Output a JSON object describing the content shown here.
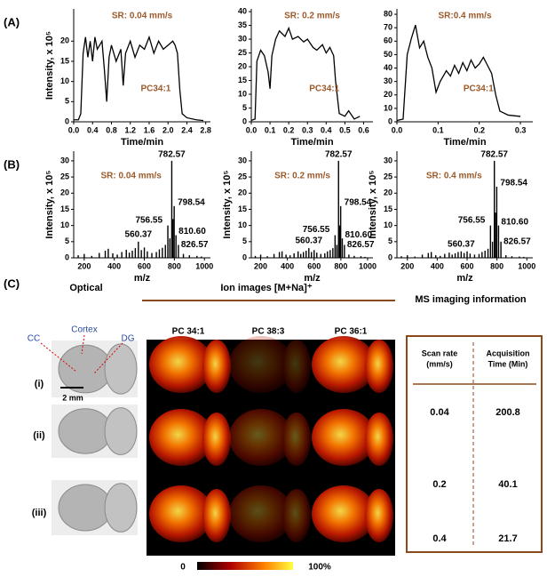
{
  "panel_labels": [
    "(A)",
    "(B)",
    "(C)"
  ],
  "chart_data": [
    {
      "type": "line",
      "annotations": [
        "SR: 0.04 mm/s",
        "PC34:1"
      ],
      "xlabel": "Time/min",
      "ylabel": "Intensity, x 10⁵",
      "color": "#000000",
      "x": [
        0,
        0.1,
        0.15,
        0.2,
        0.25,
        0.3,
        0.35,
        0.4,
        0.45,
        0.5,
        0.55,
        0.6,
        0.65,
        0.7,
        0.75,
        0.8,
        0.9,
        1.0,
        1.05,
        1.1,
        1.2,
        1.3,
        1.4,
        1.5,
        1.6,
        1.7,
        1.8,
        1.9,
        2.0,
        2.1,
        2.15,
        2.2,
        2.25,
        2.3,
        2.4,
        2.6,
        2.75
      ],
      "values": [
        0.5,
        0.5,
        2,
        17,
        21,
        16,
        20,
        15,
        21,
        18,
        19,
        20,
        13,
        5,
        16,
        19,
        15,
        18,
        9,
        17,
        20,
        16,
        19,
        18,
        21,
        17,
        20,
        18,
        19,
        20,
        19,
        17,
        8,
        2,
        1,
        0.5,
        0.3
      ],
      "xlim": [
        0,
        2.9
      ],
      "ylim": [
        0,
        28
      ],
      "xticks": [
        {
          "value": 0,
          "label": "0.0"
        },
        0.4,
        0.8,
        1.2,
        1.6,
        {
          "value": 2,
          "label": "2.0"
        },
        2.4,
        2.8
      ],
      "yticks": [
        0,
        5,
        10,
        15,
        20
      ]
    },
    {
      "type": "line",
      "annotations": [
        "SR: 0.2 mm/s",
        "PC34:1"
      ],
      "xlabel": "Time/min",
      "color": "#000000",
      "x": [
        0,
        0.02,
        0.03,
        0.05,
        0.07,
        0.09,
        0.1,
        0.11,
        0.13,
        0.15,
        0.18,
        0.2,
        0.22,
        0.25,
        0.28,
        0.3,
        0.33,
        0.35,
        0.38,
        0.4,
        0.42,
        0.44,
        0.45,
        0.47,
        0.5,
        0.52,
        0.55,
        0.58
      ],
      "values": [
        0.5,
        1,
        22,
        26,
        24,
        18,
        12,
        24,
        30,
        33,
        31,
        34,
        30,
        31,
        29,
        30,
        27,
        26,
        28,
        25,
        27,
        24,
        15,
        3,
        2,
        4,
        1,
        2
      ],
      "xlim": [
        0,
        0.65
      ],
      "ylim": [
        0,
        41
      ],
      "xticks": [
        {
          "value": 0,
          "label": "0.0"
        },
        0.1,
        0.2,
        0.3,
        0.4,
        0.5,
        0.6
      ],
      "yticks": [
        0,
        5,
        10,
        15,
        20,
        25,
        30,
        35,
        40
      ]
    },
    {
      "type": "line",
      "annotations": [
        "SR:0.4 mm/s",
        "PC34:1"
      ],
      "xlabel": "Time/min",
      "color": "#000000",
      "x": [
        0,
        0.015,
        0.025,
        0.035,
        0.045,
        0.055,
        0.065,
        0.075,
        0.085,
        0.095,
        0.105,
        0.12,
        0.13,
        0.14,
        0.15,
        0.16,
        0.17,
        0.18,
        0.19,
        0.2,
        0.21,
        0.22,
        0.23,
        0.24,
        0.25,
        0.27,
        0.3
      ],
      "values": [
        1,
        2,
        50,
        62,
        72,
        55,
        60,
        48,
        40,
        22,
        30,
        38,
        34,
        42,
        36,
        44,
        38,
        46,
        40,
        43,
        48,
        42,
        36,
        20,
        8,
        5,
        4
      ],
      "xlim": [
        0,
        0.33
      ],
      "ylim": [
        0,
        84
      ],
      "xticks": [
        {
          "value": 0,
          "label": "0.0"
        },
        0.1,
        0.2,
        0.3
      ],
      "yticks": [
        0,
        10,
        20,
        30,
        40,
        50,
        60,
        70,
        80
      ]
    },
    {
      "type": "stem",
      "annotations": [
        "SR: 0.04 mm/s"
      ],
      "xlabel": "m/z",
      "ylabel": "Intensity, x 10⁵",
      "color": "#000000",
      "x": [
        160,
        200,
        250,
        300,
        340,
        360,
        390,
        420,
        450,
        480,
        500,
        520,
        540,
        560.37,
        580,
        600,
        620,
        650,
        680,
        700,
        720,
        740,
        756.55,
        770,
        782.57,
        790,
        798.54,
        810.6,
        826.57,
        860,
        900,
        950,
        980
      ],
      "values": [
        0.8,
        1.2,
        0.6,
        1.5,
        2.2,
        2.8,
        1.4,
        1.0,
        1.8,
        2.5,
        1.6,
        2.2,
        3.0,
        5,
        2.4,
        3.2,
        2.0,
        1.5,
        1.8,
        2.6,
        3.1,
        4.0,
        10,
        6,
        30,
        12,
        16,
        7,
        4,
        1.2,
        0.8,
        0.6,
        0.4
      ],
      "peak_labels": [
        {
          "label": "782.57",
          "x": 782.57
        },
        {
          "label": "798.54",
          "x": 798.54
        },
        {
          "label": "756.55",
          "x": 756.55
        },
        {
          "label": "810.60",
          "x": 810.6
        },
        {
          "label": "826.57",
          "x": 826.57
        },
        {
          "label": "560.37",
          "x": 560.37
        }
      ],
      "xlim": [
        130,
        1040
      ],
      "ylim": [
        0,
        33
      ],
      "xticks": [
        200,
        400,
        600,
        800,
        1000
      ],
      "yticks": [
        0,
        5,
        10,
        15,
        20,
        25,
        30
      ]
    },
    {
      "type": "stem",
      "annotations": [
        "SR: 0.2 mm/s"
      ],
      "xlabel": "m/z",
      "ylabel": "Intensity, x 10⁵",
      "color": "#000000",
      "x": [
        160,
        200,
        250,
        300,
        340,
        360,
        390,
        420,
        450,
        480,
        500,
        520,
        540,
        560.37,
        580,
        600,
        620,
        650,
        680,
        700,
        720,
        740,
        756.55,
        770,
        782.57,
        790,
        798.54,
        810.6,
        826.57,
        860,
        900,
        950,
        980
      ],
      "values": [
        0.6,
        1.0,
        0.5,
        1.2,
        1.8,
        2.0,
        1.0,
        0.8,
        1.4,
        2.0,
        1.2,
        1.8,
        2.2,
        3,
        1.8,
        2.4,
        1.6,
        1.2,
        1.4,
        2.0,
        2.4,
        3.0,
        7,
        4,
        30,
        10,
        16,
        6,
        4,
        1.0,
        0.6,
        0.5,
        0.3
      ],
      "peak_labels": [
        {
          "label": "782.57",
          "x": 782.57
        },
        {
          "label": "798.54",
          "x": 798.54
        },
        {
          "label": "756.55",
          "x": 756.55
        },
        {
          "label": "810.60",
          "x": 810.6
        },
        {
          "label": "826.57",
          "x": 826.57
        },
        {
          "label": "560.37",
          "x": 560.37
        }
      ],
      "xlim": [
        130,
        1040
      ],
      "ylim": [
        0,
        33
      ],
      "xticks": [
        200,
        400,
        600,
        800,
        1000
      ],
      "yticks": [
        0,
        5,
        10,
        15,
        20,
        25,
        30
      ]
    },
    {
      "type": "stem",
      "annotations": [
        "SR: 0.4 mm/s"
      ],
      "xlabel": "m/z",
      "ylabel": "Intensity, x 10⁵",
      "color": "#000000",
      "x": [
        160,
        200,
        250,
        300,
        340,
        360,
        390,
        420,
        450,
        480,
        500,
        520,
        540,
        560.37,
        580,
        600,
        620,
        650,
        680,
        700,
        720,
        740,
        756.55,
        770,
        782.57,
        790,
        798.54,
        810.6,
        826.57,
        860,
        900,
        950,
        980
      ],
      "values": [
        0.5,
        0.8,
        0.4,
        1.0,
        1.5,
        1.8,
        0.8,
        0.6,
        1.2,
        1.6,
        1.0,
        1.4,
        1.8,
        2,
        1.5,
        2.0,
        1.3,
        1.0,
        1.2,
        1.8,
        2.2,
        2.8,
        10,
        5,
        30,
        14,
        22,
        10,
        5,
        0.8,
        0.5,
        0.4,
        0.3
      ],
      "peak_labels": [
        {
          "label": "782.57",
          "x": 782.57
        },
        {
          "label": "798.54",
          "x": 798.54
        },
        {
          "label": "756.55",
          "x": 756.55
        },
        {
          "label": "810.60",
          "x": 810.6
        },
        {
          "label": "826.57",
          "x": 826.57
        },
        {
          "label": "560.37",
          "x": 560.37
        }
      ],
      "xlim": [
        130,
        1040
      ],
      "ylim": [
        0,
        33
      ],
      "xticks": [
        200,
        400,
        600,
        800,
        1000
      ],
      "yticks": [
        0,
        5,
        10,
        15,
        20,
        25,
        30
      ]
    }
  ],
  "panel_c": {
    "optical_title": "Optical",
    "ion_title": "Ion images [M+Na]⁺",
    "info_title": "MS imaging information",
    "regions": [
      "CC",
      "Cortex",
      "DG"
    ],
    "scale_bar": "2 mm",
    "row_labels": [
      "(i)",
      "(ii)",
      "(iii)"
    ],
    "ion_columns": [
      "PC 34:1",
      "PC 38:3",
      "PC 36:1"
    ],
    "colorbar": [
      "0",
      "100%"
    ],
    "table": {
      "header": [
        [
          "Scan rate",
          "(mm/s)"
        ],
        [
          "Acquisition",
          "Time (Min)"
        ]
      ],
      "rows": [
        [
          0.04,
          200.8
        ],
        [
          0.2,
          40.1
        ],
        [
          0.4,
          21.7
        ]
      ]
    }
  }
}
